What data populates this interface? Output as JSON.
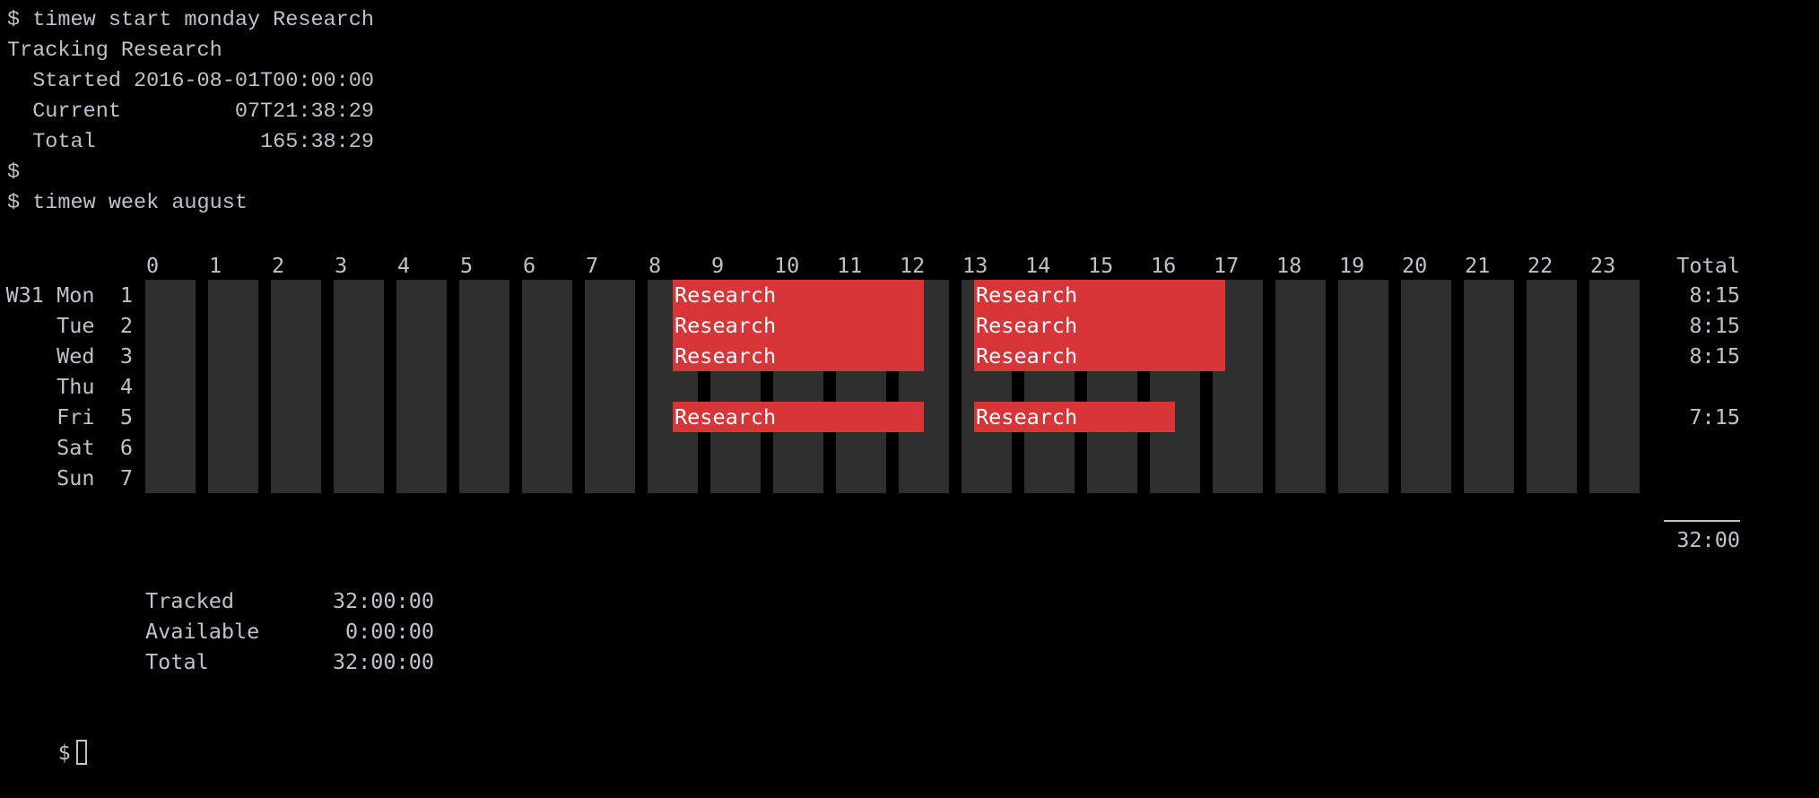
{
  "command_lines": [
    "$ timew start monday Research",
    "Tracking Research",
    "  Started 2016-08-01T00:00:00",
    "  Current         07T21:38:29",
    "  Total             165:38:29",
    "$",
    "$ timew week august"
  ],
  "chart": {
    "hours": [
      "0",
      "1",
      "2",
      "3",
      "4",
      "5",
      "6",
      "7",
      "8",
      "9",
      "10",
      "11",
      "12",
      "13",
      "14",
      "15",
      "16",
      "17",
      "18",
      "19",
      "20",
      "21",
      "22",
      "23"
    ],
    "total_header": "Total",
    "rows": [
      {
        "label": "W31 Mon  1",
        "total": "8:15"
      },
      {
        "label": "Tue  2",
        "total": "8:15"
      },
      {
        "label": "Wed  3",
        "total": "8:15"
      },
      {
        "label": "Thu  4",
        "total": ""
      },
      {
        "label": "Fri  5",
        "total": "7:15"
      },
      {
        "label": "Sat  6",
        "total": ""
      },
      {
        "label": "Sun  7",
        "total": ""
      }
    ],
    "intervals": [
      {
        "row": 0,
        "start": 8.4,
        "end": 12.4,
        "tag": "Research"
      },
      {
        "row": 0,
        "start": 13.2,
        "end": 17.2,
        "tag": "Research"
      },
      {
        "row": 1,
        "start": 8.4,
        "end": 12.4,
        "tag": "Research"
      },
      {
        "row": 1,
        "start": 13.2,
        "end": 17.2,
        "tag": "Research"
      },
      {
        "row": 2,
        "start": 8.4,
        "end": 12.4,
        "tag": "Research"
      },
      {
        "row": 2,
        "start": 13.2,
        "end": 17.2,
        "tag": "Research"
      },
      {
        "row": 4,
        "start": 8.4,
        "end": 12.4,
        "tag": "Research"
      },
      {
        "row": 4,
        "start": 13.2,
        "end": 16.4,
        "tag": "Research"
      }
    ],
    "grand_total": "32:00",
    "colors": {
      "background": "#000000",
      "cell": "#2f2f2f",
      "interval": "#d73538",
      "text": "#bcc3c9"
    }
  },
  "summary": [
    {
      "label": "Tracked",
      "value": "32:00:00"
    },
    {
      "label": "Available",
      "value": "0:00:00"
    },
    {
      "label": "Total",
      "value": "32:00:00"
    }
  ],
  "prompt": "$"
}
